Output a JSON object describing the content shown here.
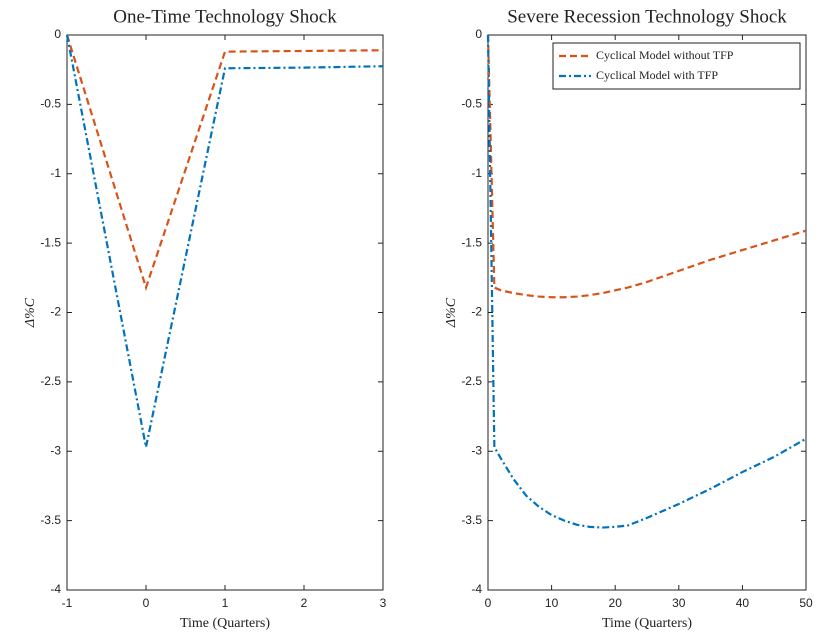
{
  "chart_data": [
    {
      "type": "line",
      "title": "One-Time Technology Shock",
      "xlabel": "Time (Quarters)",
      "ylabel": "Δ%C",
      "x": [
        -1,
        0,
        1,
        2,
        3
      ],
      "series": [
        {
          "color": "#d95319",
          "line_style": "dashed",
          "values": [
            0,
            -1.82,
            -0.12,
            -0.115,
            -0.11
          ]
        },
        {
          "color": "#0072bd",
          "line_style": "dashdot",
          "values": [
            0,
            -2.97,
            -0.24,
            -0.235,
            -0.225
          ]
        }
      ],
      "xlim": [
        -1,
        3
      ],
      "xticks": [
        -1,
        0,
        1,
        2,
        3
      ],
      "ylim": [
        -4,
        0
      ],
      "yticks": [
        0,
        -0.5,
        -1,
        -1.5,
        -2,
        -2.5,
        -3,
        -3.5,
        -4
      ]
    },
    {
      "type": "line",
      "title": "Severe Recession Technology Shock",
      "xlabel": "Time (Quarters)",
      "ylabel": "Δ%C",
      "x": [
        0,
        1,
        2,
        4,
        6,
        8,
        10,
        12,
        14,
        16,
        18,
        20,
        22,
        25,
        30,
        35,
        40,
        45,
        50
      ],
      "series": [
        {
          "name": "Cyclical Model without TFP",
          "color": "#d95319",
          "line_style": "dashed",
          "values": [
            0,
            -1.82,
            -1.84,
            -1.86,
            -1.875,
            -1.885,
            -1.89,
            -1.89,
            -1.885,
            -1.875,
            -1.86,
            -1.84,
            -1.82,
            -1.78,
            -1.7,
            -1.62,
            -1.55,
            -1.48,
            -1.41
          ]
        },
        {
          "name": "Cyclical Model with TFP",
          "color": "#0072bd",
          "line_style": "dashdot",
          "values": [
            0,
            -2.97,
            -3.05,
            -3.2,
            -3.32,
            -3.4,
            -3.46,
            -3.5,
            -3.53,
            -3.545,
            -3.55,
            -3.545,
            -3.535,
            -3.48,
            -3.38,
            -3.27,
            -3.15,
            -3.04,
            -2.91
          ]
        }
      ],
      "xlim": [
        0,
        50
      ],
      "xticks": [
        0,
        10,
        20,
        30,
        40,
        50
      ],
      "ylim": [
        -4,
        0
      ],
      "yticks": [
        0,
        -0.5,
        -1,
        -1.5,
        -2,
        -2.5,
        -3,
        -3.5,
        -4
      ],
      "legend": "upper right"
    }
  ]
}
